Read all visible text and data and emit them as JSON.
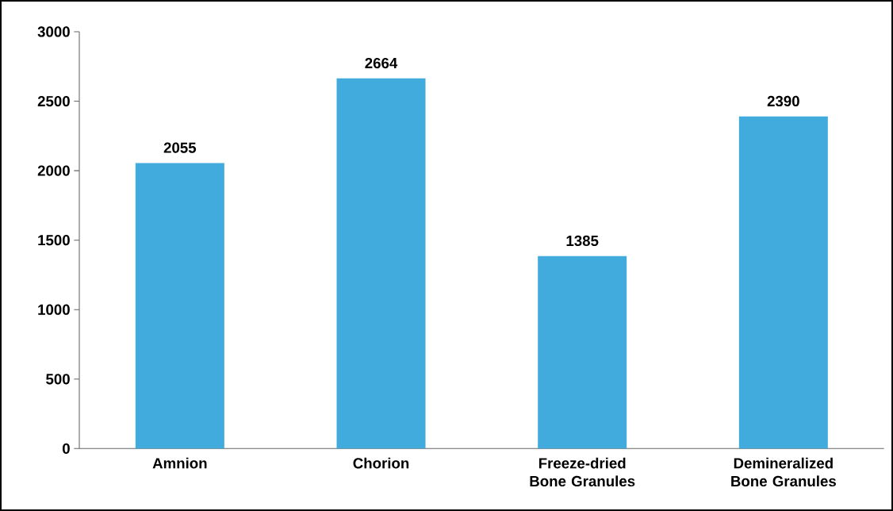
{
  "chart_data": {
    "type": "bar",
    "categories": [
      "Amnion",
      "Chorion",
      "Freeze-dried Bone Granules",
      "Demineralized Bone Granules"
    ],
    "values": [
      2055,
      2664,
      1385,
      2390
    ],
    "color": "#41abdd",
    "ylim": [
      0,
      3000
    ],
    "yticks": [
      0,
      500,
      1000,
      1500,
      2000,
      2500,
      3000
    ],
    "data_labels": true,
    "grid": false
  }
}
